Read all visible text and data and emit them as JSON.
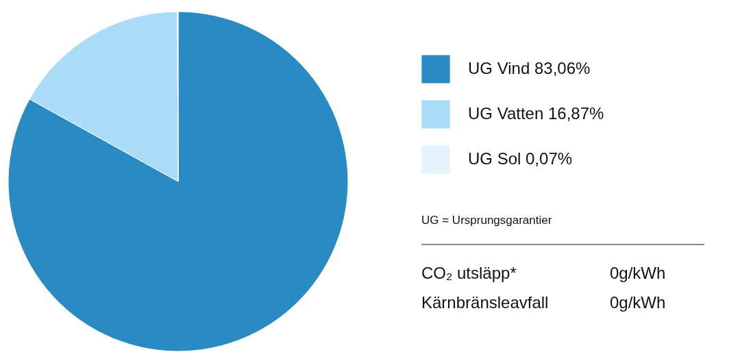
{
  "chart_data": {
    "type": "pie",
    "categories": [
      "UG Vind 83,06%",
      "UG Vatten 16,87%",
      "UG Sol 0,07%"
    ],
    "values": [
      83.06,
      16.87,
      0.07
    ],
    "colors": [
      "#2a8bc4",
      "#aadbf7",
      "#e5f4fc"
    ],
    "legend": "right",
    "annotations": [
      "UG = Ursprungsgarantier",
      "CO₂ utsläpp*",
      "0g/kWh",
      "Kärnbränsleavfall",
      "0g/kWh"
    ]
  }
}
